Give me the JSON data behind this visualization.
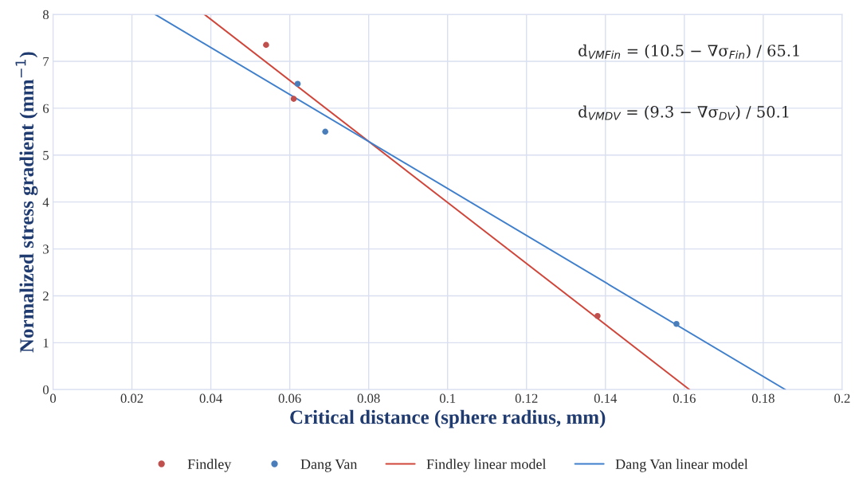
{
  "chart_data": {
    "type": "scatter",
    "xlabel": "Critical distance (sphere radius, mm)",
    "ylabel": "Normalized stress gradient (mm$^{−1}$)",
    "xlim": [
      0,
      0.2
    ],
    "xticks": [
      0,
      0.02,
      0.04,
      0.06,
      0.08,
      0.1,
      0.12,
      0.14,
      0.16,
      0.18,
      0.2
    ],
    "ylim": [
      0,
      8
    ],
    "yticks": [
      0,
      1,
      2,
      3,
      4,
      5,
      6,
      7,
      8
    ],
    "grid": true,
    "legend": "bottom",
    "series": [
      {
        "name": "Findley",
        "marker": "circle",
        "color": "#c0504d",
        "x": [
          0.054,
          0.061,
          0.138
        ],
        "values": [
          7.35,
          6.2,
          1.57
        ]
      },
      {
        "name": "Dang Van",
        "marker": "circle",
        "color": "#4a7ebb",
        "x": [
          0.062,
          0.069,
          0.158
        ],
        "values": [
          6.52,
          5.5,
          1.4
        ]
      },
      {
        "name": "Findley linear model",
        "type": "line",
        "color": "#d0463a",
        "x": [
          0.0384,
          0.1613
        ],
        "values": [
          8,
          0
        ]
      },
      {
        "name": "Dang Van linear model",
        "type": "line",
        "color": "#3f7fcc",
        "x": [
          0.0259,
          0.1856
        ],
        "values": [
          8,
          0
        ]
      }
    ],
    "annotations": [
      "d$_{VMFin}$ = (10.5 − ∇σ$_{Fin}$) / 65.1",
      "d$_{VMDV}$ = (9.3 − ∇σ$_{DV}$) / 50.1"
    ]
  }
}
